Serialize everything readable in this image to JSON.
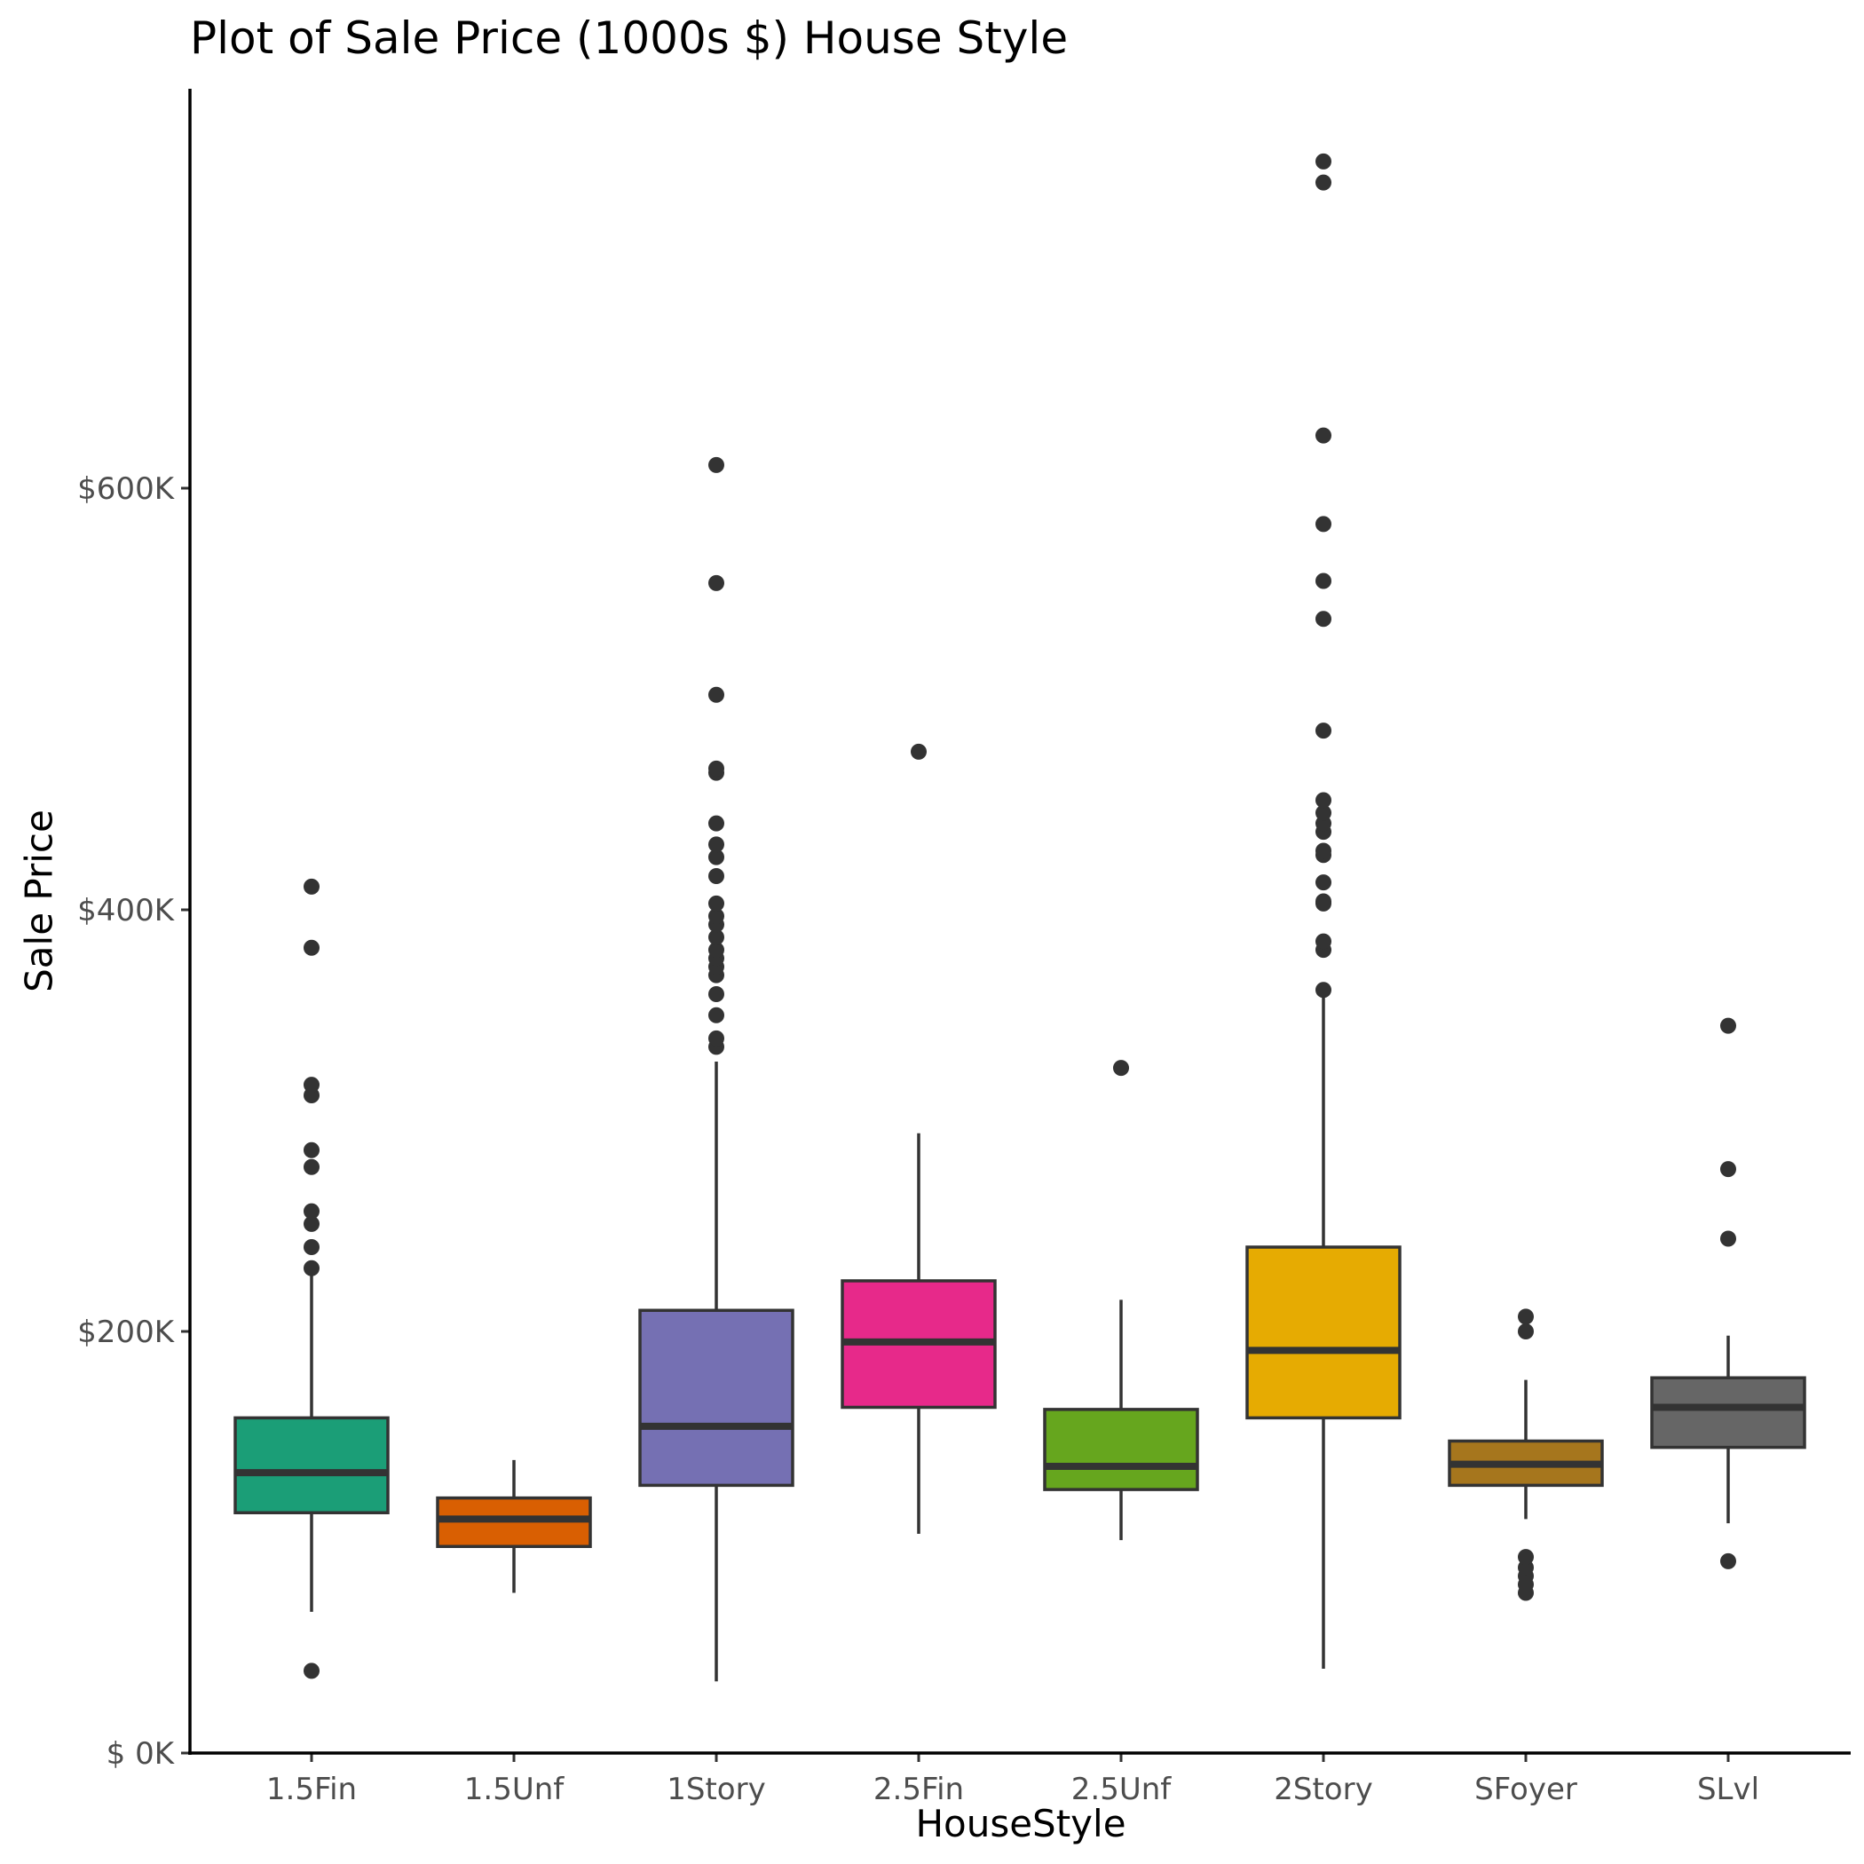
{
  "chart_data": {
    "type": "boxplot",
    "title": "Plot of Sale Price (1000s $) House Style",
    "xlabel": "HouseStyle",
    "ylabel": "Sale Price",
    "y_ticks": [
      0,
      200000,
      400000,
      600000
    ],
    "y_tick_labels": [
      "$  0K",
      "$200K",
      "$400K",
      "$600K"
    ],
    "ylim": [
      0,
      790000
    ],
    "grid": false,
    "legend": "none",
    "categories": [
      "1.5Fin",
      "1.5Unf",
      "1Story",
      "2.5Fin",
      "2.5Unf",
      "2Story",
      "SFoyer",
      "SLvl"
    ],
    "colors": [
      "#1b9e77",
      "#d95f02",
      "#7570b3",
      "#e7298a",
      "#66a61e",
      "#e6ab02",
      "#a6761d",
      "#666666"
    ],
    "boxes": [
      {
        "name": "1.5Fin",
        "whisker_low": 67000,
        "q1": 114000,
        "median": 133000,
        "q3": 159000,
        "whisker_high": 228000,
        "outliers": [
          39000,
          230000,
          240000,
          251000,
          257000,
          278000,
          286000,
          312000,
          317000,
          382000,
          411000
        ]
      },
      {
        "name": "1.5Unf",
        "whisker_low": 76000,
        "q1": 98000,
        "median": 111000,
        "q3": 121000,
        "whisker_high": 139000,
        "outliers": []
      },
      {
        "name": "1Story",
        "whisker_low": 34000,
        "q1": 127000,
        "median": 155000,
        "q3": 210000,
        "whisker_high": 328000,
        "outliers": [
          335000,
          339000,
          350000,
          360000,
          369000,
          373000,
          377000,
          381000,
          387000,
          393000,
          397000,
          403000,
          416000,
          425000,
          431000,
          441000,
          465000,
          467000,
          502000,
          555000,
          611000
        ]
      },
      {
        "name": "2.5Fin",
        "whisker_low": 104000,
        "q1": 164000,
        "median": 195000,
        "q3": 224000,
        "whisker_high": 294000,
        "outliers": [
          475000
        ]
      },
      {
        "name": "2.5Unf",
        "whisker_low": 101000,
        "q1": 125000,
        "median": 136000,
        "q3": 163000,
        "whisker_high": 215000,
        "outliers": [
          325000
        ]
      },
      {
        "name": "2Story",
        "whisker_low": 40000,
        "q1": 159000,
        "median": 191000,
        "q3": 240000,
        "whisker_high": 362000,
        "outliers": [
          362000,
          381000,
          385000,
          403000,
          404000,
          413000,
          426000,
          428000,
          437000,
          441000,
          446000,
          452000,
          485000,
          538000,
          556000,
          583000,
          625000,
          745000,
          755000
        ]
      },
      {
        "name": "SFoyer",
        "whisker_low": 111000,
        "q1": 127000,
        "median": 137000,
        "q3": 148000,
        "whisker_high": 177000,
        "outliers": [
          76000,
          80000,
          84000,
          88000,
          93000,
          200000,
          207000
        ]
      },
      {
        "name": "SLvl",
        "whisker_low": 109000,
        "q1": 145000,
        "median": 164000,
        "q3": 178000,
        "whisker_high": 198000,
        "outliers": [
          91000,
          244000,
          277000,
          345000
        ]
      }
    ]
  }
}
